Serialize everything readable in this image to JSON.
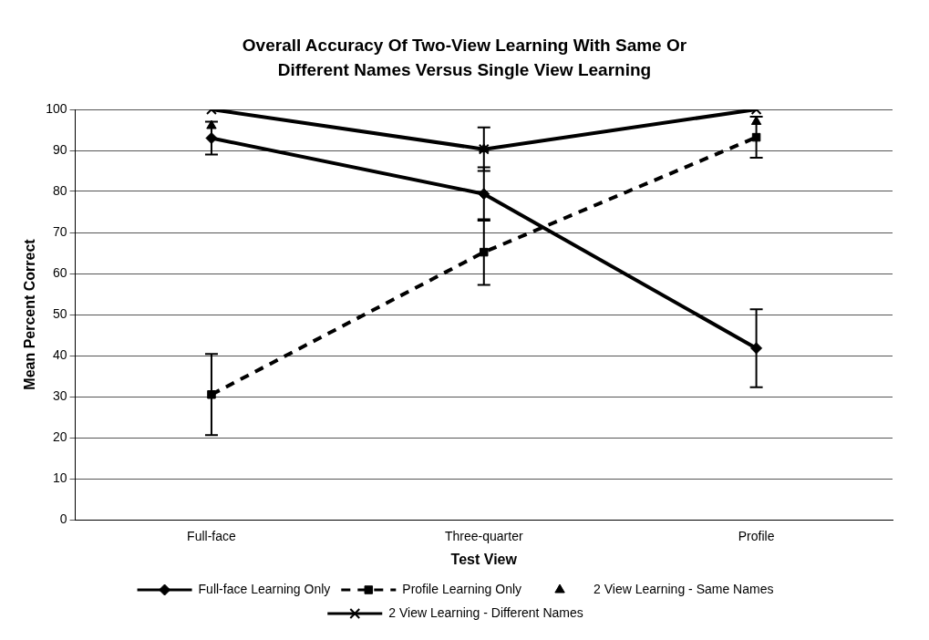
{
  "chart_data": {
    "type": "line",
    "title": "Overall Accuracy Of Two-View Learning With Same Or Different Names Versus Single View Learning",
    "xlabel": "Test View",
    "ylabel": "Mean Percent Correct",
    "categories": [
      "Full-face",
      "Three-quarter",
      "Profile"
    ],
    "ylim": [
      0,
      100
    ],
    "yticks": [
      0,
      10,
      20,
      30,
      40,
      50,
      60,
      70,
      80,
      90,
      100
    ],
    "grid": "y",
    "legend": "bottom",
    "series": [
      {
        "name": "Full-face Learning Only",
        "color": "#000000",
        "values": [
          93,
          79.4,
          41.8
        ],
        "errors": [
          4,
          6.5,
          9.5
        ],
        "marker": "diamond",
        "line_style": "solid"
      },
      {
        "name": "Profile Learning Only",
        "color": "#000000",
        "values": [
          30.5,
          65.2,
          93.2
        ],
        "errors": [
          9.9,
          8,
          5
        ],
        "marker": "square",
        "line_style": "dashed"
      },
      {
        "name": "2 View Learning - Same Names",
        "color": "#000000",
        "type": "scatter",
        "x": [
          "Full-face",
          "Three-quarter",
          "Profile"
        ],
        "values": [
          96,
          90.3,
          97
        ],
        "errors": [
          null,
          5.3,
          null
        ],
        "marker": "triangle"
      },
      {
        "name": "2 View Learning - Different Names",
        "color": "#000000",
        "values": [
          100,
          90.3,
          100
        ],
        "marker": "cross",
        "line_style": "solid"
      }
    ]
  }
}
